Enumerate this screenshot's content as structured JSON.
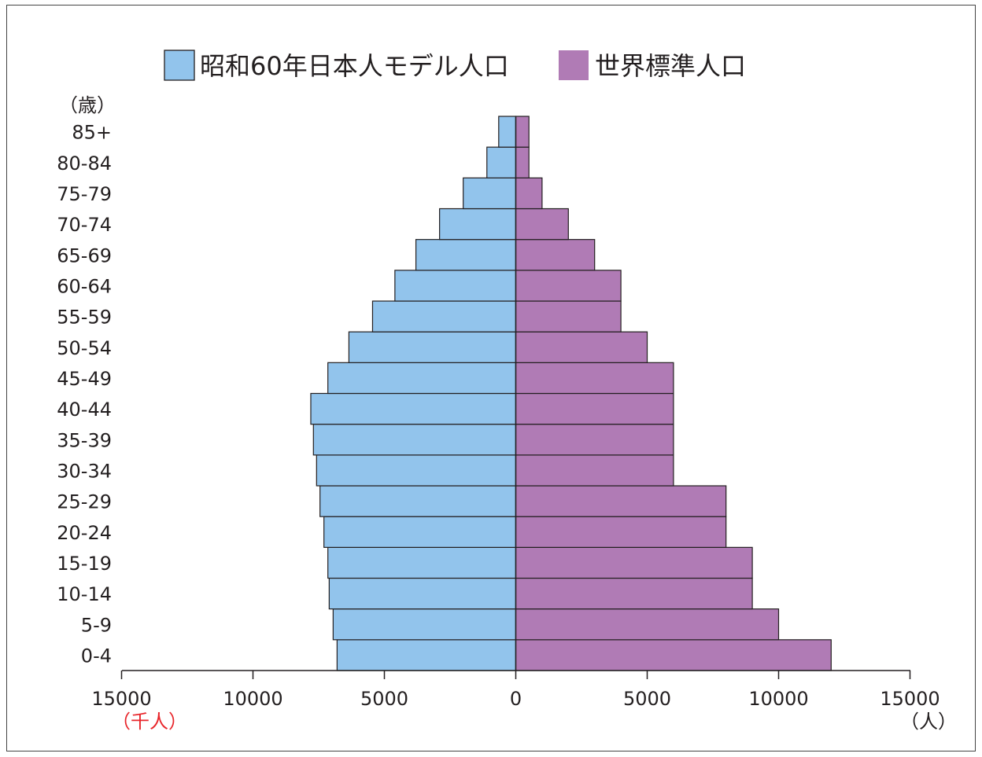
{
  "chart_data": {
    "type": "bar",
    "orientation": "horizontal",
    "layout": "population-pyramid",
    "categories": [
      "0-4",
      "5-9",
      "10-14",
      "15-19",
      "20-24",
      "25-29",
      "30-34",
      "35-39",
      "40-44",
      "45-49",
      "50-54",
      "55-59",
      "60-64",
      "65-69",
      "70-74",
      "75-79",
      "80-84",
      "85+"
    ],
    "series": [
      {
        "name": "昭和60年日本人モデル人口",
        "side": "left",
        "unit": "（千人）",
        "color": "#92c4ec",
        "values": [
          6800,
          6950,
          7100,
          7150,
          7300,
          7450,
          7580,
          7700,
          7800,
          7150,
          6350,
          5450,
          4600,
          3800,
          2900,
          2000,
          1100,
          650
        ]
      },
      {
        "name": "世界標準人口",
        "side": "right",
        "unit": "（人）",
        "color": "#b07bb5",
        "values": [
          12000,
          10000,
          9000,
          9000,
          8000,
          8000,
          6000,
          6000,
          6000,
          6000,
          5000,
          4000,
          4000,
          3000,
          2000,
          1000,
          500,
          500
        ]
      }
    ],
    "y_unit_label": "（歳）",
    "x_ticks_left": [
      "15000",
      "10000",
      "5000"
    ],
    "x_ticks_right": [
      "0",
      "5000",
      "10000",
      "15000"
    ],
    "x_unit_left": "（千人）",
    "x_unit_right": "（人）",
    "xlim": [
      -15000,
      15000
    ],
    "left_axis_color": "#e8262b",
    "grid": false,
    "legend_position": "top"
  }
}
